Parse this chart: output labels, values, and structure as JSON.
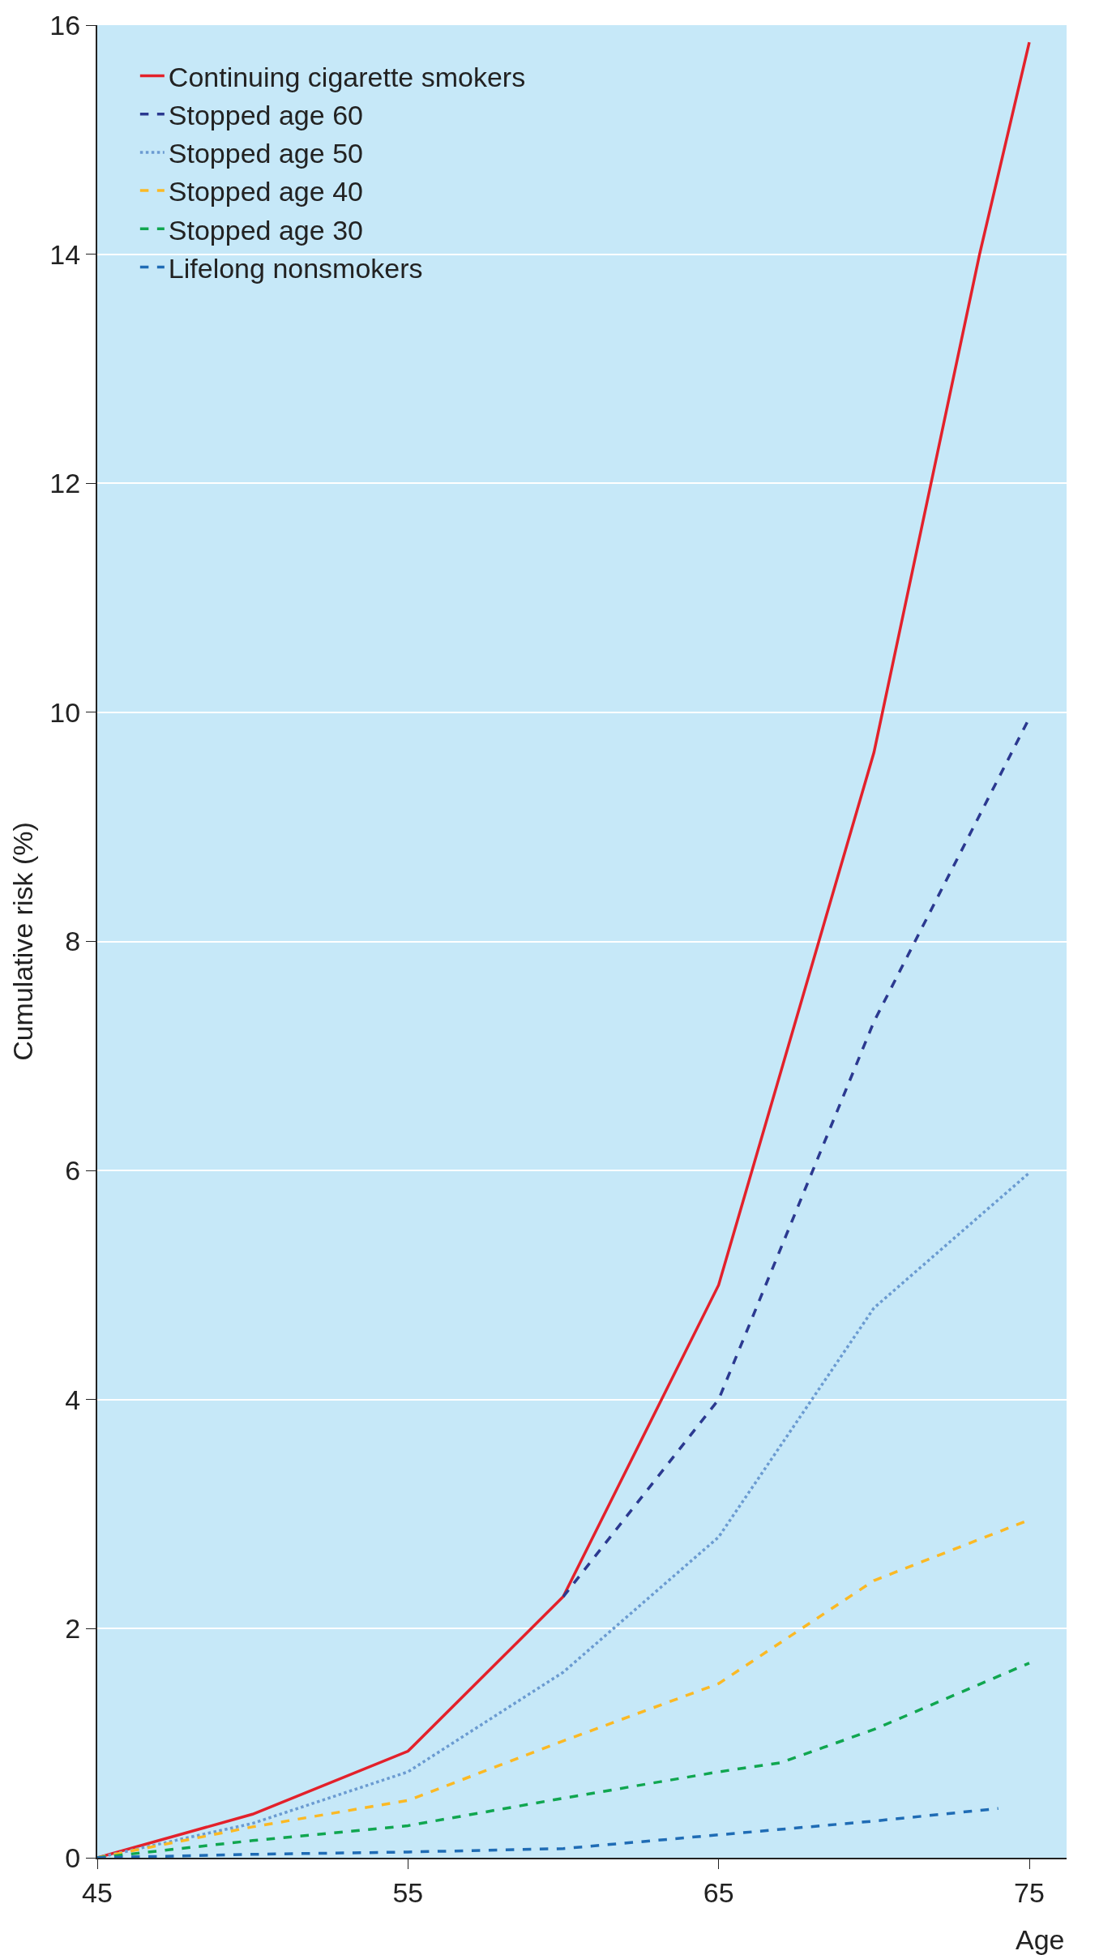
{
  "chart_data": {
    "type": "line",
    "xlabel": "Age",
    "ylabel": "Cumulative risk (%)",
    "xlim": [
      45,
      76.2
    ],
    "xticks": [
      45,
      55,
      65,
      75
    ],
    "ylim": [
      0,
      16
    ],
    "yticks": [
      0,
      2,
      4,
      6,
      8,
      10,
      12,
      14,
      16
    ],
    "grid": "y",
    "legend": "top left",
    "marker": "none",
    "series": [
      {
        "name": "Continuing cigarette smokers",
        "color": "#e3212b",
        "line_style": "solid",
        "x": [
          45,
          50,
          55,
          60,
          65,
          70,
          73.4,
          75
        ],
        "values": [
          0,
          0.38,
          0.93,
          2.28,
          5.0,
          9.65,
          14.0,
          15.85
        ]
      },
      {
        "name": "Stopped age 60",
        "color": "#2b3990",
        "line_style": "dashed",
        "x": [
          60,
          65,
          70,
          75
        ],
        "values": [
          2.28,
          4.0,
          7.3,
          9.95
        ]
      },
      {
        "name": "Stopped age 50",
        "color": "#6b9bd1",
        "line_style": "dotted",
        "x": [
          45,
          50,
          55,
          60,
          65,
          70,
          75
        ],
        "values": [
          0,
          0.3,
          0.75,
          1.62,
          2.8,
          4.8,
          5.98
        ]
      },
      {
        "name": "Stopped age 40",
        "color": "#fbb924",
        "line_style": "dashed",
        "x": [
          45,
          50,
          55,
          60,
          65,
          70,
          75
        ],
        "values": [
          0,
          0.27,
          0.5,
          1.02,
          1.52,
          2.42,
          2.95
        ]
      },
      {
        "name": "Stopped age 30",
        "color": "#10a650",
        "line_style": "dashed",
        "x": [
          45,
          50,
          55,
          60,
          65,
          67,
          70,
          75
        ],
        "values": [
          0,
          0.15,
          0.28,
          0.52,
          0.75,
          0.83,
          1.12,
          1.7
        ]
      },
      {
        "name": "Lifelong nonsmokers",
        "color": "#1f6cb5",
        "line_style": "dashed",
        "x": [
          45,
          50,
          55,
          60,
          65,
          70,
          74
        ],
        "values": [
          0,
          0.03,
          0.05,
          0.08,
          0.2,
          0.32,
          0.43
        ]
      }
    ]
  }
}
